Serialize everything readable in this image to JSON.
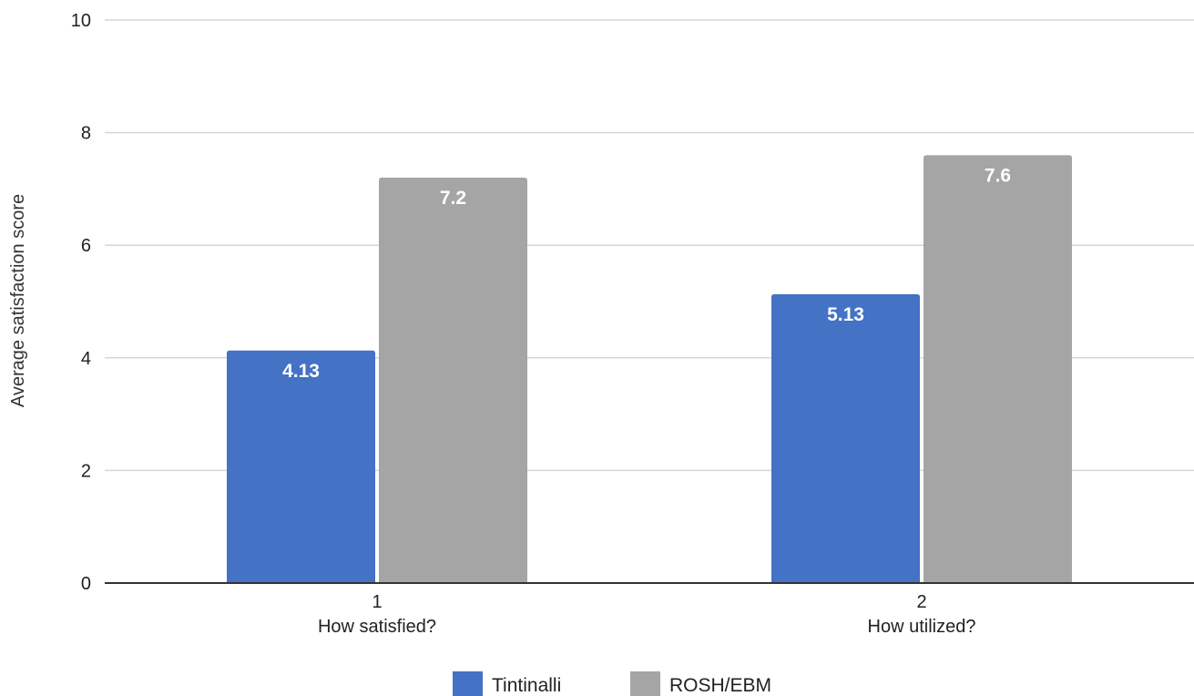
{
  "chart_data": {
    "type": "bar",
    "title": "",
    "xlabel": "",
    "ylabel": "Average satisfaction score",
    "ylim": [
      0,
      10
    ],
    "yticks": [
      0,
      2,
      4,
      6,
      8,
      10
    ],
    "grid": true,
    "legend_position": "bottom",
    "categories": [
      {
        "number": "1",
        "name": "How satisfied?"
      },
      {
        "number": "2",
        "name": "How utilized?"
      }
    ],
    "series": [
      {
        "name": "Tintinalli",
        "color": "#4472c4",
        "values": [
          4.13,
          5.13
        ],
        "labels": [
          "4.13",
          "5.13"
        ]
      },
      {
        "name": "ROSH/EBM",
        "color": "#a5a5a5",
        "values": [
          7.2,
          7.6
        ],
        "labels": [
          "7.2",
          "7.6"
        ]
      }
    ]
  }
}
